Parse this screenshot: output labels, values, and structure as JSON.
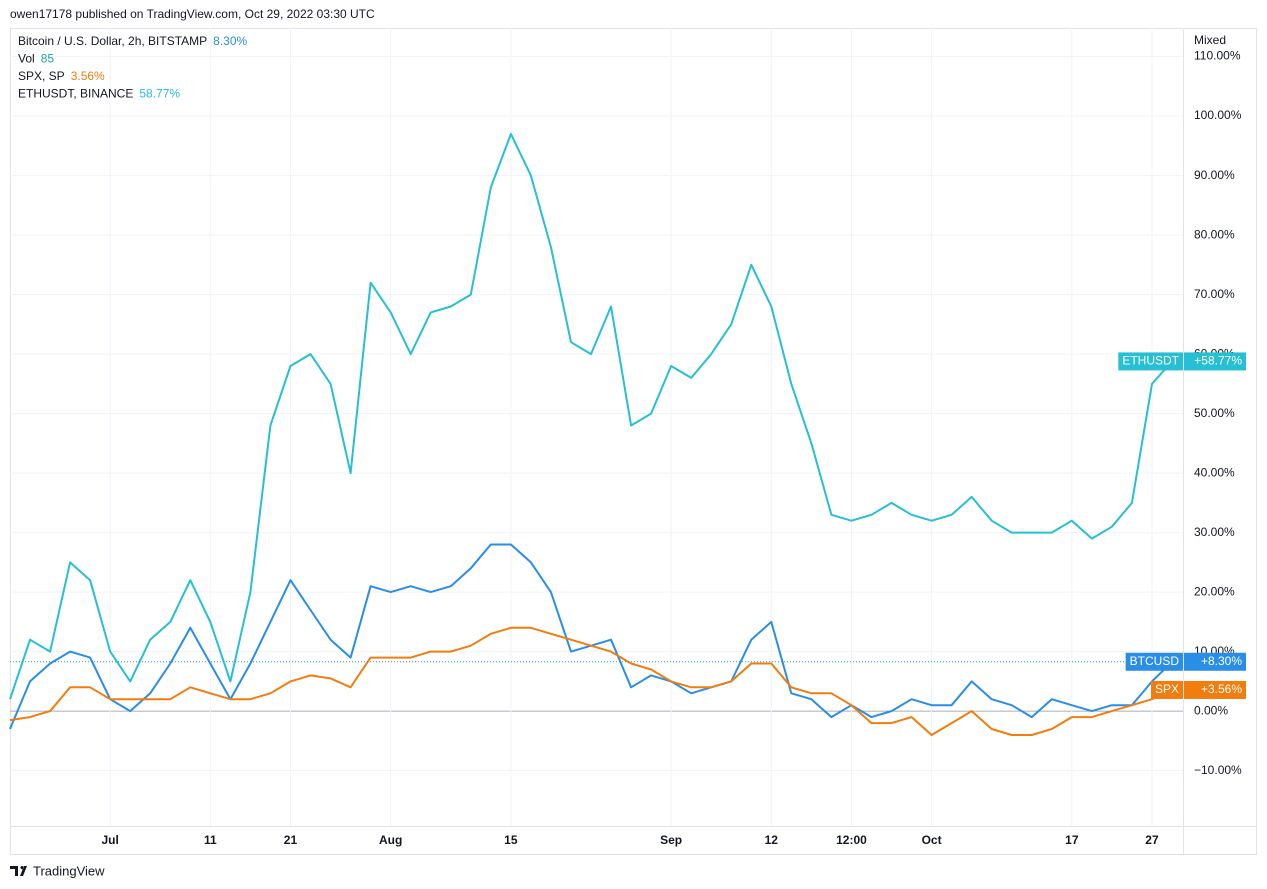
{
  "chart_data": {
    "type": "line",
    "header": "owen17178 published on TradingView.com, Oct 29, 2022 03:30 UTC",
    "scale_mode": "Mixed",
    "brand": "TradingView",
    "volume_legend": {
      "name": "Vol",
      "value": 85,
      "color": "#26a69a"
    },
    "categories": [
      null,
      null,
      null,
      null,
      null,
      "Jul",
      null,
      null,
      null,
      null,
      "11",
      null,
      null,
      null,
      "21",
      null,
      null,
      null,
      null,
      "Aug",
      null,
      null,
      null,
      null,
      null,
      "15",
      null,
      null,
      null,
      null,
      null,
      null,
      null,
      "Sep",
      null,
      null,
      null,
      null,
      "12",
      null,
      null,
      null,
      "12:00",
      null,
      null,
      null,
      "Oct",
      null,
      null,
      null,
      null,
      null,
      null,
      "17",
      null,
      null,
      null,
      "27",
      null
    ],
    "ylim": [
      -19.3,
      114.8
    ],
    "yticks": [
      {
        "value": -10,
        "label": "−10.00%"
      },
      {
        "value": 0,
        "label": "0.00%"
      },
      {
        "value": 10,
        "label": "10.00%"
      },
      {
        "value": 20,
        "label": "20.00%"
      },
      {
        "value": 30,
        "label": "30.00%"
      },
      {
        "value": 40,
        "label": "40.00%"
      },
      {
        "value": 50,
        "label": "50.00%"
      },
      {
        "value": 60,
        "label": "60.00%"
      },
      {
        "value": 70,
        "label": "70.00%"
      },
      {
        "value": 80,
        "label": "80.00%"
      },
      {
        "value": 90,
        "label": "90.00%"
      },
      {
        "value": 100,
        "label": "100.00%"
      },
      {
        "value": 110,
        "label": "110.00%"
      }
    ],
    "grid": true,
    "series": [
      {
        "name": "Bitcoin / U.S. Dollar, 2h, BITSTAMP",
        "legend_value": "8.30%",
        "badge": "BTCUSD",
        "last_label": "+8.30%",
        "color": "#2a8de6",
        "values": [
          -3,
          5,
          8,
          10,
          9,
          2,
          0,
          3,
          8,
          14,
          8,
          2,
          8,
          15,
          22,
          17,
          12,
          9,
          21,
          20,
          21,
          20,
          21,
          24,
          28,
          28,
          25,
          20,
          10,
          11,
          12,
          4,
          6,
          5,
          3,
          4,
          5,
          12,
          15,
          3,
          2,
          -1,
          1,
          -1,
          0,
          2,
          1,
          1,
          5,
          2,
          1,
          -1,
          2,
          1,
          0,
          1,
          1,
          5,
          8.3
        ]
      },
      {
        "name": "SPX, SP",
        "legend_value": "3.56%",
        "badge": "SPX",
        "last_label": "+3.56%",
        "color": "#f07d0e",
        "values": [
          -1.5,
          -1,
          0,
          4,
          4,
          2,
          2,
          2,
          2,
          4,
          3,
          2,
          2,
          3,
          5,
          6,
          5.5,
          4,
          9,
          9,
          9,
          10,
          10,
          11,
          13,
          14,
          14,
          13,
          12,
          11,
          10,
          8,
          7,
          5,
          4,
          4,
          5,
          8,
          8,
          4,
          3,
          3,
          1,
          -2,
          -2,
          -1,
          -4,
          -2,
          0,
          -3,
          -4,
          -4,
          -3,
          -1,
          -1,
          0,
          1,
          2,
          3.56
        ]
      },
      {
        "name": "ETHUSDT, BINANCE",
        "legend_value": "58.77%",
        "badge": "ETHUSDT",
        "last_label": "+58.77%",
        "color": "#26bfd4",
        "values": [
          2,
          12,
          10,
          25,
          22,
          10,
          5,
          12,
          15,
          22,
          15,
          5,
          20,
          48,
          58,
          60,
          55,
          40,
          72,
          67,
          60,
          67,
          68,
          70,
          88,
          97,
          90,
          78,
          62,
          60,
          68,
          48,
          50,
          58,
          56,
          60,
          65,
          75,
          68,
          55,
          45,
          33,
          32,
          33,
          35,
          33,
          32,
          33,
          36,
          32,
          30,
          30,
          30,
          32,
          29,
          31,
          35,
          55,
          58.77
        ]
      }
    ]
  }
}
